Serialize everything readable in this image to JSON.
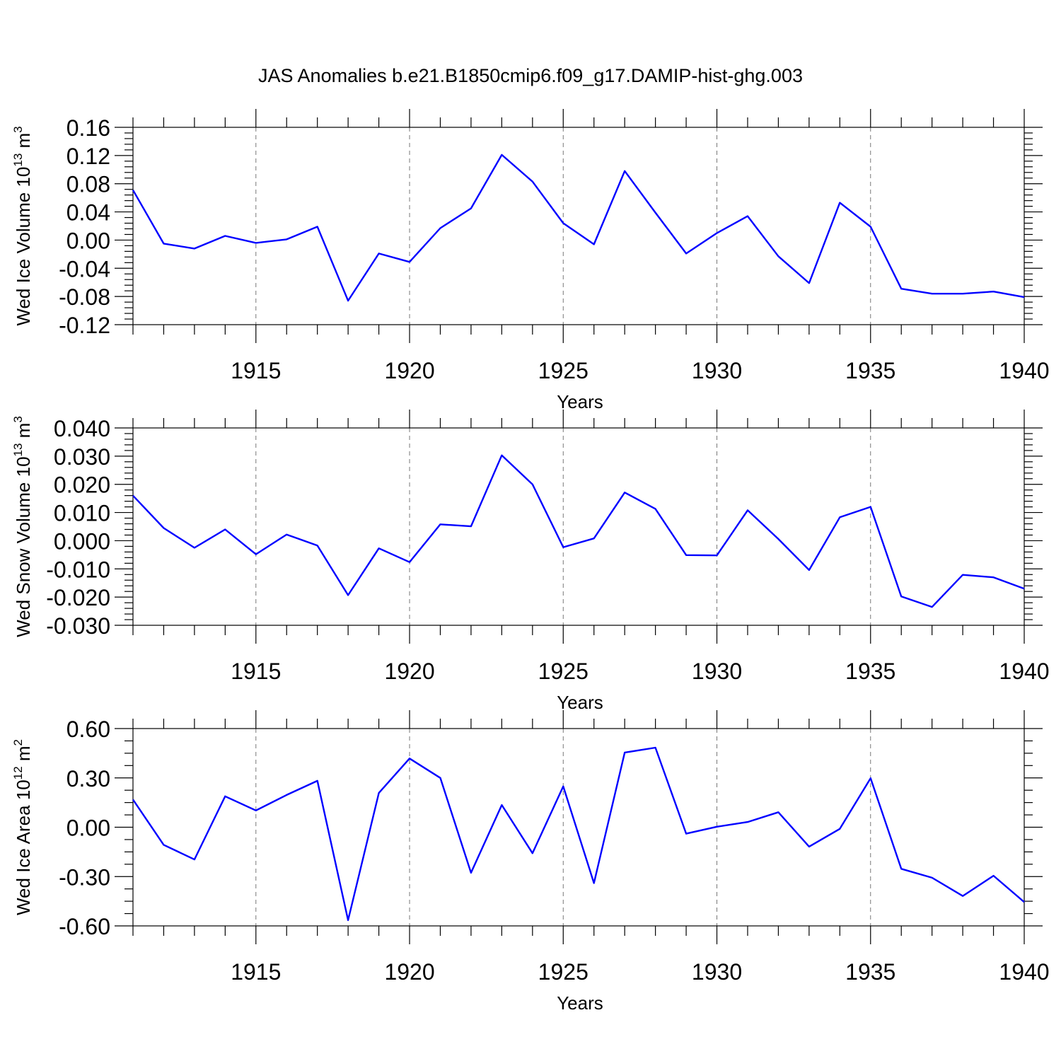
{
  "figure": {
    "title": "JAS Anomalies b.e21.B1850cmip6.f09_g17.DAMIP-hist-ghg.003"
  },
  "chart_data": [
    {
      "type": "line",
      "title": "JAS Anomalies b.e21.B1850cmip6.f09_g17.DAMIP-hist-ghg.003",
      "xlabel": "Years",
      "ylabel": "Wed Ice Volume 10",
      "ylabel_exp": "13",
      "ylabel_unit": " m",
      "ylabel_unit_exp": "3",
      "xlim": [
        1911,
        1940
      ],
      "ylim": [
        -0.12,
        0.16
      ],
      "yticks": [
        -0.12,
        -0.08,
        -0.04,
        0.0,
        0.04,
        0.08,
        0.12,
        0.16
      ],
      "ytick_labels": [
        "-0.12",
        "-0.08",
        "-0.04",
        "0.00",
        "0.04",
        "0.08",
        "0.12",
        "0.16"
      ],
      "xticks": [
        1915,
        1920,
        1925,
        1930,
        1935,
        1940
      ],
      "xtick_labels": [
        "1915",
        "1920",
        "1925",
        "1930",
        "1935",
        "1940"
      ],
      "grid": "dashed vertical at major x ticks",
      "color": "#0000ff",
      "x": [
        1911,
        1912,
        1913,
        1914,
        1915,
        1916,
        1917,
        1918,
        1919,
        1920,
        1921,
        1922,
        1923,
        1924,
        1925,
        1926,
        1927,
        1928,
        1929,
        1930,
        1931,
        1932,
        1933,
        1934,
        1935,
        1936,
        1937,
        1938,
        1939,
        1940
      ],
      "values": [
        0.071,
        -0.005,
        -0.012,
        0.006,
        -0.004,
        0.001,
        0.019,
        -0.086,
        -0.019,
        -0.031,
        0.017,
        0.045,
        0.121,
        0.083,
        0.024,
        -0.006,
        0.098,
        0.039,
        -0.019,
        0.01,
        0.034,
        -0.023,
        -0.061,
        0.053,
        0.019,
        -0.069,
        -0.076,
        -0.076,
        -0.073,
        -0.081
      ]
    },
    {
      "type": "line",
      "xlabel": "Years",
      "ylabel": "Wed Snow Volume 10",
      "ylabel_exp": "13",
      "ylabel_unit": " m",
      "ylabel_unit_exp": "3",
      "xlim": [
        1911,
        1940
      ],
      "ylim": [
        -0.03,
        0.04
      ],
      "yticks": [
        -0.03,
        -0.02,
        -0.01,
        0.0,
        0.01,
        0.02,
        0.03,
        0.04
      ],
      "ytick_labels": [
        "-0.030",
        "-0.020",
        "-0.010",
        "0.000",
        "0.010",
        "0.020",
        "0.030",
        "0.040"
      ],
      "xticks": [
        1915,
        1920,
        1925,
        1930,
        1935,
        1940
      ],
      "xtick_labels": [
        "1915",
        "1920",
        "1925",
        "1930",
        "1935",
        "1940"
      ],
      "grid": "dashed vertical at major x ticks",
      "color": "#0000ff",
      "x": [
        1911,
        1912,
        1913,
        1914,
        1915,
        1916,
        1917,
        1918,
        1919,
        1920,
        1921,
        1922,
        1923,
        1924,
        1925,
        1926,
        1927,
        1928,
        1929,
        1930,
        1931,
        1932,
        1933,
        1934,
        1935,
        1936,
        1937,
        1938,
        1939,
        1940
      ],
      "values": [
        0.016,
        0.0045,
        -0.0025,
        0.004,
        -0.0048,
        0.0022,
        -0.0017,
        -0.0193,
        -0.0027,
        -0.0076,
        0.0058,
        0.0051,
        0.0303,
        0.02,
        -0.0023,
        0.0008,
        0.0171,
        0.0113,
        -0.0051,
        -0.0052,
        0.0108,
        0.0006,
        -0.0104,
        0.0083,
        0.012,
        -0.0198,
        -0.0235,
        -0.0121,
        -0.013,
        -0.017
      ]
    },
    {
      "type": "line",
      "xlabel": "Years",
      "ylabel": "Wed Ice Area 10",
      "ylabel_exp": "12",
      "ylabel_unit": " m",
      "ylabel_unit_exp": "2",
      "xlim": [
        1911,
        1940
      ],
      "ylim": [
        -0.6,
        0.6
      ],
      "yticks": [
        -0.6,
        -0.3,
        0.0,
        0.3,
        0.6
      ],
      "ytick_labels": [
        "-0.60",
        "-0.30",
        "0.00",
        "0.30",
        "0.60"
      ],
      "xticks": [
        1915,
        1920,
        1925,
        1930,
        1935,
        1940
      ],
      "xtick_labels": [
        "1915",
        "1920",
        "1925",
        "1930",
        "1935",
        "1940"
      ],
      "grid": "dashed vertical at major x ticks",
      "color": "#0000ff",
      "x": [
        1911,
        1912,
        1913,
        1914,
        1915,
        1916,
        1917,
        1918,
        1919,
        1920,
        1921,
        1922,
        1923,
        1924,
        1925,
        1926,
        1927,
        1928,
        1929,
        1930,
        1931,
        1932,
        1933,
        1934,
        1935,
        1936,
        1937,
        1938,
        1939,
        1940
      ],
      "values": [
        0.168,
        -0.107,
        -0.196,
        0.188,
        0.102,
        0.196,
        0.282,
        -0.565,
        0.208,
        0.418,
        0.3,
        -0.277,
        0.135,
        -0.158,
        0.248,
        -0.34,
        0.454,
        0.484,
        -0.039,
        0.003,
        0.032,
        0.091,
        -0.118,
        -0.01,
        0.298,
        -0.253,
        -0.307,
        -0.418,
        -0.295,
        -0.455
      ]
    }
  ]
}
